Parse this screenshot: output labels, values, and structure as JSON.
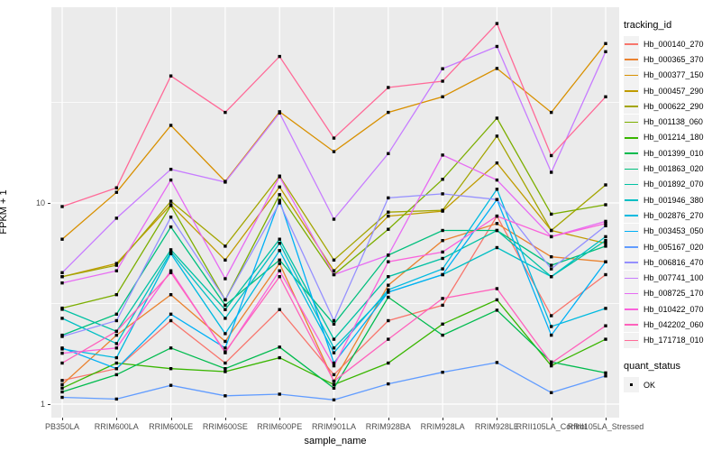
{
  "chart_data": {
    "type": "line",
    "title": "",
    "xlabel": "sample_name",
    "ylabel": "FPKM + 1",
    "y_scale": "log10",
    "y_major_ticks": [
      1,
      10
    ],
    "y_minor_ticks": [
      3.162,
      31.62
    ],
    "grid": true,
    "legend_position": "right",
    "marker": {
      "shape": "square",
      "color": "#000000"
    },
    "categories": [
      "PB350LA",
      "RRIM600LA",
      "RRIM600LE",
      "RRIM600SE",
      "RRIM600PE",
      "RRIM901LA",
      "RRIM928BA",
      "RRIM928LA",
      "RRIM928LE",
      "RRII105LA_Control",
      "RRII105LA_Stressed"
    ],
    "series": [
      {
        "name": "Hb_000140_270",
        "color": "#F8766D",
        "values": [
          1.31,
          1.5,
          2.6,
          1.6,
          2.95,
          1.4,
          2.6,
          3.1,
          8.6,
          2.75,
          4.4
        ]
      },
      {
        "name": "Hb_000365_370",
        "color": "#EA8331",
        "values": [
          1.25,
          2.2,
          3.5,
          2.05,
          5.0,
          1.3,
          3.9,
          6.5,
          7.9,
          5.4,
          5.1
        ]
      },
      {
        "name": "Hb_000377_150",
        "color": "#D89000",
        "values": [
          6.6,
          11.3,
          24.3,
          12.8,
          28.4,
          18.0,
          28.2,
          33.7,
          46.6,
          28.2,
          62.0
        ]
      },
      {
        "name": "Hb_000457_290",
        "color": "#C09B00",
        "values": [
          4.3,
          5.0,
          9.8,
          5.2,
          12.0,
          4.6,
          8.6,
          9.1,
          15.8,
          7.3,
          6.3
        ]
      },
      {
        "name": "Hb_000622_290",
        "color": "#A3A500",
        "values": [
          4.3,
          4.9,
          10.2,
          6.1,
          13.6,
          5.2,
          9.0,
          9.2,
          21.5,
          7.3,
          12.3
        ]
      },
      {
        "name": "Hb_001138_060",
        "color": "#7CAE00",
        "values": [
          3.0,
          3.5,
          9.7,
          3.3,
          11.0,
          4.4,
          7.4,
          13.1,
          26.4,
          8.8,
          9.8
        ]
      },
      {
        "name": "Hb_001214_180",
        "color": "#39B600",
        "values": [
          1.2,
          1.6,
          1.5,
          1.45,
          1.7,
          1.25,
          1.6,
          2.5,
          3.3,
          1.55,
          2.1
        ]
      },
      {
        "name": "Hb_001399_010",
        "color": "#00BB4E",
        "values": [
          1.15,
          1.4,
          1.9,
          1.5,
          1.92,
          1.2,
          3.4,
          2.2,
          2.93,
          1.62,
          1.43
        ]
      },
      {
        "name": "Hb_001863_020",
        "color": "#00BF7D",
        "values": [
          2.2,
          2.8,
          7.6,
          3.1,
          5.2,
          2.5,
          5.5,
          7.3,
          7.3,
          4.9,
          6.1
        ]
      },
      {
        "name": "Hb_001892_070",
        "color": "#00C1A3",
        "values": [
          2.96,
          2.3,
          5.85,
          2.95,
          6.6,
          2.1,
          4.3,
          5.3,
          7.3,
          4.3,
          6.5
        ]
      },
      {
        "name": "Hb_001946_380",
        "color": "#00BFC4",
        "values": [
          2.67,
          2.0,
          5.7,
          2.67,
          6.3,
          1.9,
          3.6,
          4.4,
          6.0,
          4.3,
          6.8
        ]
      },
      {
        "name": "Hb_002876_270",
        "color": "#00BAE0",
        "values": [
          1.88,
          1.7,
          5.6,
          2.24,
          5.8,
          1.8,
          3.7,
          4.7,
          11.7,
          2.43,
          2.99
        ]
      },
      {
        "name": "Hb_003453_050",
        "color": "#00B0F6",
        "values": [
          1.9,
          1.5,
          2.8,
          1.9,
          10.3,
          1.6,
          3.6,
          4.4,
          10.4,
          2.2,
          5.1
        ]
      },
      {
        "name": "Hb_005167_020",
        "color": "#619CFF",
        "values": [
          1.08,
          1.06,
          1.24,
          1.1,
          1.12,
          1.05,
          1.26,
          1.44,
          1.61,
          1.14,
          1.38
        ]
      },
      {
        "name": "Hb_006816_470",
        "color": "#9590FF",
        "values": [
          2.17,
          2.6,
          8.5,
          3.3,
          10.0,
          2.6,
          10.6,
          11.1,
          10.4,
          4.7,
          7.7
        ]
      },
      {
        "name": "Hb_007741_100",
        "color": "#C77CFF",
        "values": [
          4.5,
          8.4,
          14.7,
          12.7,
          28.0,
          8.3,
          17.6,
          46.5,
          60.0,
          14.2,
          56.5
        ]
      },
      {
        "name": "Hb_008725_170",
        "color": "#E76BF3",
        "values": [
          4.0,
          4.6,
          13.0,
          4.2,
          13.5,
          4.4,
          5.5,
          17.3,
          13.0,
          6.8,
          8.1
        ]
      },
      {
        "name": "Hb_010422_070",
        "color": "#FA62DB",
        "values": [
          1.79,
          1.9,
          4.6,
          1.8,
          4.6,
          1.55,
          5.1,
          5.7,
          8.6,
          6.8,
          7.9
        ]
      },
      {
        "name": "Hb_042202_060",
        "color": "#FF62BC",
        "values": [
          1.6,
          2.3,
          4.5,
          1.82,
          4.3,
          1.3,
          2.1,
          3.35,
          3.75,
          1.6,
          2.45
        ]
      },
      {
        "name": "Hb_171718_010",
        "color": "#FF6A98",
        "values": [
          9.6,
          11.9,
          42.8,
          28.2,
          53.5,
          21.0,
          37.5,
          40.3,
          78.0,
          17.2,
          33.7
        ]
      }
    ]
  },
  "axes": {
    "y_title": "FPKM + 1",
    "x_title": "sample_name",
    "y_tick_labels": [
      "10",
      "1"
    ]
  },
  "legend": {
    "tracking_title": "tracking_id",
    "quant_title": "quant_status",
    "quant_ok_label": "OK"
  },
  "style_colors": {
    "panel_bg": "#EBEBEB",
    "grid": "#FFFFFF",
    "tick_text": "#4D4D4D",
    "legend_key_bg": "#F2F2F2",
    "point": "#000000"
  }
}
